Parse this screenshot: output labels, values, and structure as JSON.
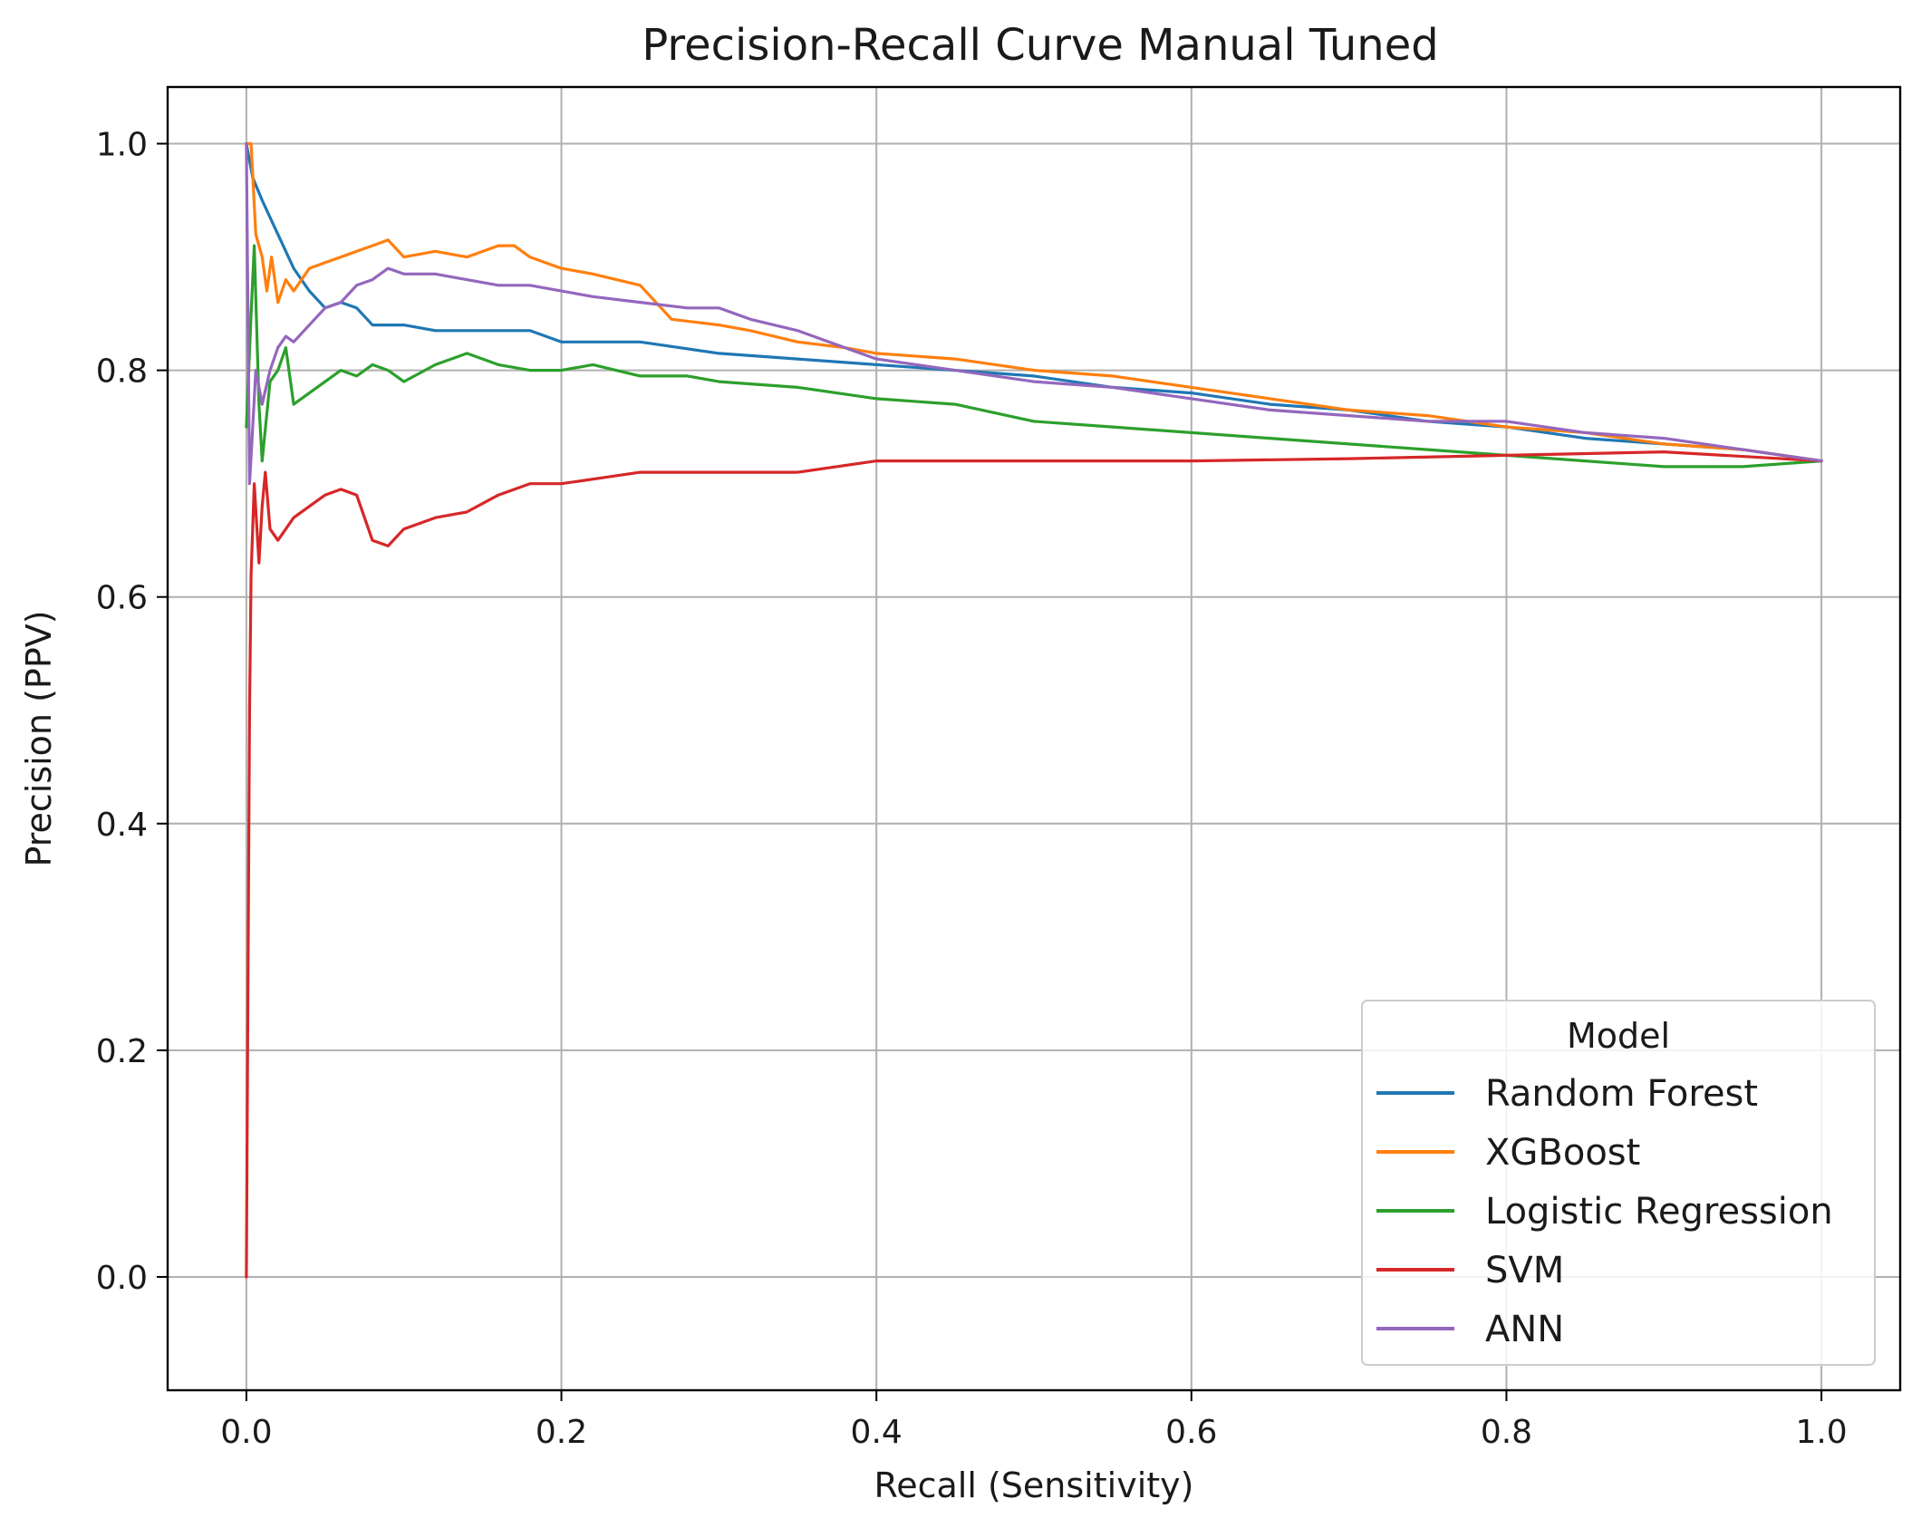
{
  "chart_data": {
    "type": "line",
    "title": "Precision-Recall Curve Manual Tuned",
    "xlabel": "Recall (Sensitivity)",
    "ylabel": "Precision (PPV)",
    "xlim": [
      -0.05,
      1.05
    ],
    "ylim": [
      -0.1,
      1.05
    ],
    "xticks": [
      0.0,
      0.2,
      0.4,
      0.6,
      0.8,
      1.0
    ],
    "xtick_labels": [
      "0.0",
      "0.2",
      "0.4",
      "0.6",
      "0.8",
      "1.0"
    ],
    "yticks": [
      0.0,
      0.2,
      0.4,
      0.6,
      0.8,
      1.0
    ],
    "ytick_labels": [
      "0.0",
      "0.2",
      "0.4",
      "0.6",
      "0.8",
      "1.0"
    ],
    "grid": true,
    "legend": {
      "title": "Model",
      "position": "lower-right"
    },
    "series": [
      {
        "name": "Random Forest",
        "color": "#1f77b4",
        "points": [
          [
            0.0,
            1.0
          ],
          [
            0.004,
            0.97
          ],
          [
            0.01,
            0.95
          ],
          [
            0.02,
            0.92
          ],
          [
            0.03,
            0.89
          ],
          [
            0.04,
            0.87
          ],
          [
            0.05,
            0.855
          ],
          [
            0.06,
            0.86
          ],
          [
            0.07,
            0.855
          ],
          [
            0.08,
            0.84
          ],
          [
            0.1,
            0.84
          ],
          [
            0.12,
            0.835
          ],
          [
            0.15,
            0.835
          ],
          [
            0.18,
            0.835
          ],
          [
            0.2,
            0.825
          ],
          [
            0.25,
            0.825
          ],
          [
            0.3,
            0.815
          ],
          [
            0.35,
            0.81
          ],
          [
            0.4,
            0.805
          ],
          [
            0.45,
            0.8
          ],
          [
            0.5,
            0.795
          ],
          [
            0.55,
            0.785
          ],
          [
            0.6,
            0.78
          ],
          [
            0.65,
            0.77
          ],
          [
            0.7,
            0.765
          ],
          [
            0.75,
            0.755
          ],
          [
            0.8,
            0.75
          ],
          [
            0.85,
            0.74
          ],
          [
            0.9,
            0.735
          ],
          [
            0.95,
            0.73
          ],
          [
            1.0,
            0.72
          ]
        ]
      },
      {
        "name": "XGBoost",
        "color": "#ff7f0e",
        "points": [
          [
            0.0,
            1.0
          ],
          [
            0.003,
            1.0
          ],
          [
            0.006,
            0.92
          ],
          [
            0.01,
            0.9
          ],
          [
            0.013,
            0.87
          ],
          [
            0.016,
            0.9
          ],
          [
            0.02,
            0.86
          ],
          [
            0.025,
            0.88
          ],
          [
            0.03,
            0.87
          ],
          [
            0.04,
            0.89
          ],
          [
            0.05,
            0.895
          ],
          [
            0.06,
            0.9
          ],
          [
            0.07,
            0.905
          ],
          [
            0.08,
            0.91
          ],
          [
            0.09,
            0.915
          ],
          [
            0.1,
            0.9
          ],
          [
            0.12,
            0.905
          ],
          [
            0.14,
            0.9
          ],
          [
            0.16,
            0.91
          ],
          [
            0.17,
            0.91
          ],
          [
            0.18,
            0.9
          ],
          [
            0.2,
            0.89
          ],
          [
            0.22,
            0.885
          ],
          [
            0.25,
            0.875
          ],
          [
            0.26,
            0.86
          ],
          [
            0.27,
            0.845
          ],
          [
            0.3,
            0.84
          ],
          [
            0.32,
            0.835
          ],
          [
            0.35,
            0.825
          ],
          [
            0.38,
            0.82
          ],
          [
            0.4,
            0.815
          ],
          [
            0.45,
            0.81
          ],
          [
            0.5,
            0.8
          ],
          [
            0.55,
            0.795
          ],
          [
            0.6,
            0.785
          ],
          [
            0.65,
            0.775
          ],
          [
            0.7,
            0.765
          ],
          [
            0.75,
            0.76
          ],
          [
            0.8,
            0.75
          ],
          [
            0.85,
            0.745
          ],
          [
            0.9,
            0.735
          ],
          [
            0.95,
            0.73
          ],
          [
            1.0,
            0.72
          ]
        ]
      },
      {
        "name": "Logistic Regression",
        "color": "#2ca02c",
        "points": [
          [
            0.0,
            0.75
          ],
          [
            0.003,
            0.85
          ],
          [
            0.005,
            0.91
          ],
          [
            0.008,
            0.77
          ],
          [
            0.01,
            0.72
          ],
          [
            0.015,
            0.79
          ],
          [
            0.02,
            0.8
          ],
          [
            0.025,
            0.82
          ],
          [
            0.03,
            0.77
          ],
          [
            0.04,
            0.78
          ],
          [
            0.05,
            0.79
          ],
          [
            0.06,
            0.8
          ],
          [
            0.07,
            0.795
          ],
          [
            0.08,
            0.805
          ],
          [
            0.09,
            0.8
          ],
          [
            0.1,
            0.79
          ],
          [
            0.12,
            0.805
          ],
          [
            0.14,
            0.815
          ],
          [
            0.16,
            0.805
          ],
          [
            0.18,
            0.8
          ],
          [
            0.2,
            0.8
          ],
          [
            0.22,
            0.805
          ],
          [
            0.25,
            0.795
          ],
          [
            0.28,
            0.795
          ],
          [
            0.3,
            0.79
          ],
          [
            0.35,
            0.785
          ],
          [
            0.4,
            0.775
          ],
          [
            0.45,
            0.77
          ],
          [
            0.5,
            0.755
          ],
          [
            0.55,
            0.75
          ],
          [
            0.6,
            0.745
          ],
          [
            0.65,
            0.74
          ],
          [
            0.7,
            0.735
          ],
          [
            0.75,
            0.73
          ],
          [
            0.8,
            0.725
          ],
          [
            0.85,
            0.72
          ],
          [
            0.9,
            0.715
          ],
          [
            0.95,
            0.715
          ],
          [
            1.0,
            0.72
          ]
        ]
      },
      {
        "name": "SVM",
        "color": "#d62728",
        "points": [
          [
            0.0,
            0.0
          ],
          [
            0.001,
            0.25
          ],
          [
            0.002,
            0.5
          ],
          [
            0.003,
            0.62
          ],
          [
            0.005,
            0.7
          ],
          [
            0.008,
            0.63
          ],
          [
            0.01,
            0.68
          ],
          [
            0.012,
            0.71
          ],
          [
            0.015,
            0.66
          ],
          [
            0.02,
            0.65
          ],
          [
            0.025,
            0.66
          ],
          [
            0.03,
            0.67
          ],
          [
            0.04,
            0.68
          ],
          [
            0.05,
            0.69
          ],
          [
            0.06,
            0.695
          ],
          [
            0.07,
            0.69
          ],
          [
            0.08,
            0.65
          ],
          [
            0.09,
            0.645
          ],
          [
            0.1,
            0.66
          ],
          [
            0.12,
            0.67
          ],
          [
            0.14,
            0.675
          ],
          [
            0.16,
            0.69
          ],
          [
            0.18,
            0.7
          ],
          [
            0.2,
            0.7
          ],
          [
            0.25,
            0.71
          ],
          [
            0.3,
            0.71
          ],
          [
            0.35,
            0.71
          ],
          [
            0.4,
            0.72
          ],
          [
            0.45,
            0.72
          ],
          [
            0.5,
            0.72
          ],
          [
            0.6,
            0.72
          ],
          [
            0.7,
            0.722
          ],
          [
            0.8,
            0.725
          ],
          [
            0.9,
            0.728
          ],
          [
            1.0,
            0.72
          ]
        ]
      },
      {
        "name": "ANN",
        "color": "#9467bd",
        "points": [
          [
            0.0,
            1.0
          ],
          [
            0.002,
            0.7
          ],
          [
            0.004,
            0.75
          ],
          [
            0.006,
            0.8
          ],
          [
            0.01,
            0.77
          ],
          [
            0.015,
            0.8
          ],
          [
            0.02,
            0.82
          ],
          [
            0.025,
            0.83
          ],
          [
            0.03,
            0.825
          ],
          [
            0.04,
            0.84
          ],
          [
            0.05,
            0.855
          ],
          [
            0.06,
            0.86
          ],
          [
            0.07,
            0.875
          ],
          [
            0.08,
            0.88
          ],
          [
            0.09,
            0.89
          ],
          [
            0.1,
            0.885
          ],
          [
            0.12,
            0.885
          ],
          [
            0.14,
            0.88
          ],
          [
            0.16,
            0.875
          ],
          [
            0.18,
            0.875
          ],
          [
            0.2,
            0.87
          ],
          [
            0.22,
            0.865
          ],
          [
            0.25,
            0.86
          ],
          [
            0.28,
            0.855
          ],
          [
            0.3,
            0.855
          ],
          [
            0.32,
            0.845
          ],
          [
            0.35,
            0.835
          ],
          [
            0.38,
            0.82
          ],
          [
            0.4,
            0.81
          ],
          [
            0.45,
            0.8
          ],
          [
            0.5,
            0.79
          ],
          [
            0.55,
            0.785
          ],
          [
            0.6,
            0.775
          ],
          [
            0.65,
            0.765
          ],
          [
            0.7,
            0.76
          ],
          [
            0.75,
            0.755
          ],
          [
            0.8,
            0.755
          ],
          [
            0.85,
            0.745
          ],
          [
            0.9,
            0.74
          ],
          [
            0.95,
            0.73
          ],
          [
            1.0,
            0.72
          ]
        ]
      }
    ]
  }
}
